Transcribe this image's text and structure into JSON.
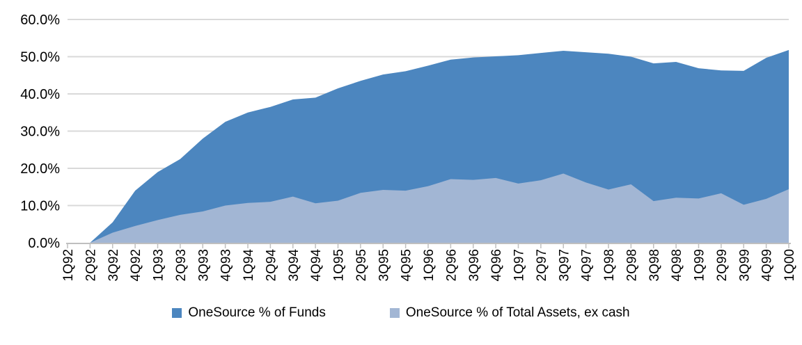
{
  "chart_data": {
    "type": "area",
    "title": "",
    "categories": [
      "1Q92",
      "2Q92",
      "3Q92",
      "4Q92",
      "1Q93",
      "2Q93",
      "3Q93",
      "4Q93",
      "1Q94",
      "2Q94",
      "3Q94",
      "4Q94",
      "1Q95",
      "2Q95",
      "3Q95",
      "4Q95",
      "1Q96",
      "2Q96",
      "3Q96",
      "4Q96",
      "1Q97",
      "2Q97",
      "3Q97",
      "4Q97",
      "1Q98",
      "2Q98",
      "3Q98",
      "4Q98",
      "1Q99",
      "2Q99",
      "3Q99",
      "4Q99",
      "1Q00"
    ],
    "series": [
      {
        "name": "OneSource % of Funds",
        "color": "#4C86BF",
        "values": [
          0,
          0,
          5.5,
          14.0,
          19.0,
          22.5,
          28.0,
          32.5,
          35.0,
          36.5,
          38.5,
          39.0,
          41.5,
          43.5,
          45.2,
          46.1,
          47.6,
          49.2,
          49.8,
          50.1,
          50.4,
          51.0,
          51.6,
          51.2,
          50.8,
          50.0,
          48.2,
          48.6,
          46.9,
          46.3,
          46.2,
          49.7,
          51.8
        ]
      },
      {
        "name": "OneSource % of Total Assets, ex cash",
        "color": "#A2B6D4",
        "values": [
          0,
          0,
          2.7,
          4.5,
          6.1,
          7.5,
          8.4,
          10.0,
          10.7,
          11.0,
          12.4,
          10.6,
          11.3,
          13.4,
          14.2,
          14.0,
          15.2,
          17.1,
          16.9,
          17.4,
          15.9,
          16.8,
          18.6,
          16.2,
          14.3,
          15.7,
          11.2,
          12.1,
          11.9,
          13.3,
          10.2,
          11.8,
          14.4
        ]
      }
    ],
    "xlabel": "",
    "ylabel": "",
    "ylim": [
      0,
      60
    ],
    "ytick_step": 10,
    "ytick_labels": [
      "0.0%",
      "10.0%",
      "20.0%",
      "30.0%",
      "40.0%",
      "50.0%",
      "60.0%"
    ],
    "grid": true,
    "gridline_color": "#D9D9D9",
    "axis_color": "#BFBFBF",
    "text_color": "#000000",
    "legend_position": "bottom"
  }
}
